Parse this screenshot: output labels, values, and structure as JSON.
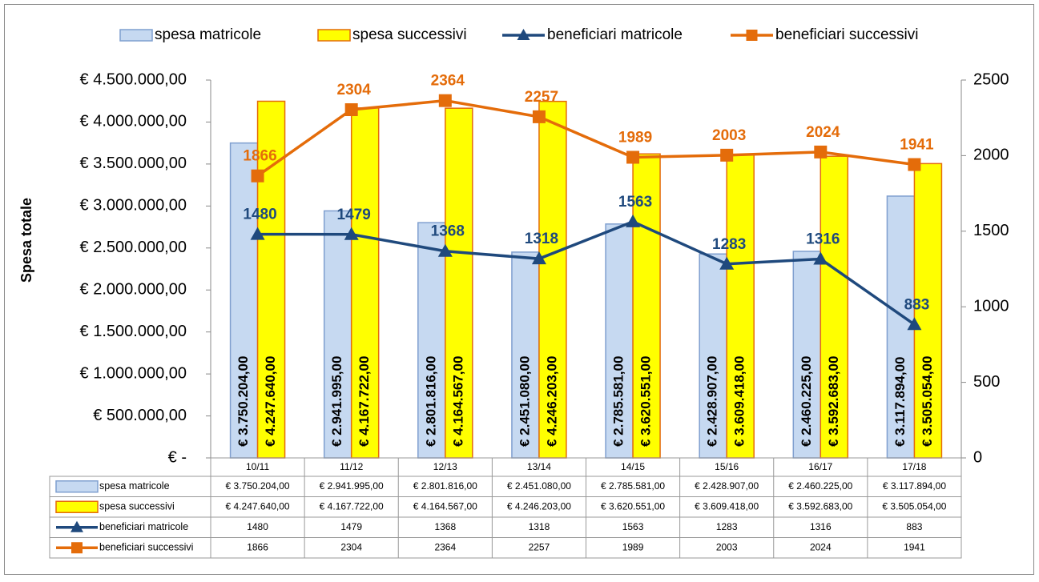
{
  "chart_data": {
    "type": "bar",
    "y_label": "Spesa totale",
    "categories": [
      "10/11",
      "11/12",
      "12/13",
      "13/14",
      "14/15",
      "15/16",
      "16/17",
      "17/18"
    ],
    "series": [
      {
        "name": "spesa matricole",
        "type": "bar",
        "color": "#c6d9f1",
        "stroke": "#7f9fcf",
        "values": [
          3750204,
          2941995,
          2801816,
          2451080,
          2785581,
          2428907,
          2460225,
          3117894
        ],
        "value_labels": [
          "€ 3.750.204,00",
          "€ 2.941.995,00",
          "€ 2.801.816,00",
          "€ 2.451.080,00",
          "€ 2.785.581,00",
          "€ 2.428.907,00",
          "€ 2.460.225,00",
          "€ 3.117.894,00"
        ]
      },
      {
        "name": "spesa successivi",
        "type": "bar",
        "color": "#ffff00",
        "stroke": "#e46c0a",
        "values": [
          4247640,
          4167722,
          4164567,
          4246203,
          3620551,
          3609418,
          3592683,
          3505054
        ],
        "value_labels": [
          "€ 4.247.640,00",
          "€ 4.167.722,00",
          "€ 4.164.567,00",
          "€ 4.246.203,00",
          "€ 3.620.551,00",
          "€ 3.609.418,00",
          "€ 3.592.683,00",
          "€ 3.505.054,00"
        ]
      },
      {
        "name": "beneficiari matricole",
        "type": "line",
        "axis": "y2",
        "marker": "triangle",
        "color": "#1f497d",
        "values": [
          1480,
          1479,
          1368,
          1318,
          1563,
          1283,
          1316,
          883
        ]
      },
      {
        "name": "beneficiari successivi",
        "type": "line",
        "axis": "y2",
        "marker": "square",
        "color": "#e46c0a",
        "values": [
          1866,
          2304,
          2364,
          2257,
          1989,
          2003,
          2024,
          1941
        ]
      }
    ],
    "ylim": [
      0,
      4500000
    ],
    "yticks": [
      {
        "value": 0,
        "label": "€ -"
      },
      {
        "value": 500000,
        "label": "€ 500.000,00"
      },
      {
        "value": 1000000,
        "label": "€ 1.000.000,00"
      },
      {
        "value": 1500000,
        "label": "€ 1.500.000,00"
      },
      {
        "value": 2000000,
        "label": "€ 2.000.000,00"
      },
      {
        "value": 2500000,
        "label": "€ 2.500.000,00"
      },
      {
        "value": 3000000,
        "label": "€ 3.000.000,00"
      },
      {
        "value": 3500000,
        "label": "€ 3.500.000,00"
      },
      {
        "value": 4000000,
        "label": "€ 4.000.000,00"
      },
      {
        "value": 4500000,
        "label": "€ 4.500.000,00"
      }
    ],
    "y2lim": [
      0,
      2500
    ],
    "y2ticks": [
      0,
      500,
      1000,
      1500,
      2000,
      2500
    ],
    "legend": "top",
    "data_table": true
  }
}
